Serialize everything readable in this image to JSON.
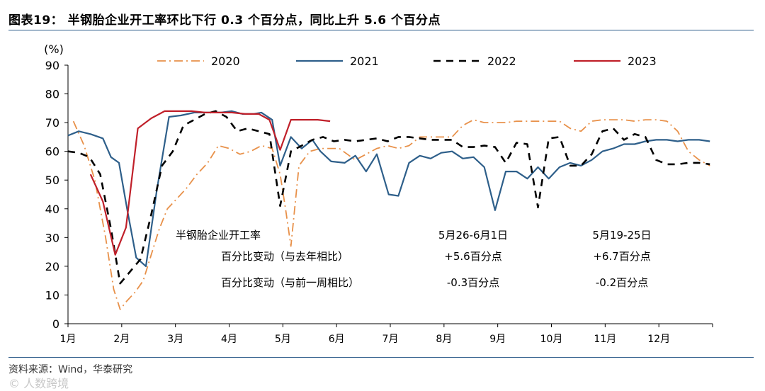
{
  "header": {
    "title": "图表19： 半钢胎企业开工率环比下行 0.3 个百分点，同比上升 5.6 个百分点"
  },
  "footer": {
    "source": "资料来源：Wind，华泰研究",
    "watermark": "© 人数跨境"
  },
  "chart_data": {
    "type": "line",
    "ylabel": "(%)",
    "ylim": [
      0,
      90
    ],
    "yticks": [
      0,
      10,
      20,
      30,
      40,
      50,
      60,
      70,
      80,
      90
    ],
    "xlim": [
      0,
      12
    ],
    "xticks": [
      {
        "x": 0,
        "label": "1月"
      },
      {
        "x": 1,
        "label": "2月"
      },
      {
        "x": 2,
        "label": "3月"
      },
      {
        "x": 3,
        "label": "4月"
      },
      {
        "x": 4,
        "label": "5月"
      },
      {
        "x": 5,
        "label": "6月"
      },
      {
        "x": 6,
        "label": "7月"
      },
      {
        "x": 7,
        "label": "8月"
      },
      {
        "x": 8,
        "label": "9月"
      },
      {
        "x": 9,
        "label": "10月"
      },
      {
        "x": 10,
        "label": "11月"
      },
      {
        "x": 11,
        "label": "12月"
      }
    ],
    "grid": false,
    "legend": "top",
    "series": [
      {
        "name": "2020",
        "color": "#e8914a",
        "style": "dashdot",
        "points": [
          [
            0.1,
            70.5
          ],
          [
            0.3,
            62
          ],
          [
            0.5,
            50
          ],
          [
            0.7,
            30
          ],
          [
            0.85,
            12
          ],
          [
            0.97,
            5
          ],
          [
            1.1,
            8
          ],
          [
            1.25,
            11
          ],
          [
            1.4,
            15
          ],
          [
            1.55,
            24
          ],
          [
            1.7,
            33
          ],
          [
            1.85,
            40
          ],
          [
            2.0,
            43
          ],
          [
            2.2,
            47
          ],
          [
            2.4,
            52
          ],
          [
            2.6,
            56
          ],
          [
            2.8,
            62
          ],
          [
            3.0,
            61
          ],
          [
            3.2,
            59
          ],
          [
            3.4,
            60
          ],
          [
            3.6,
            62
          ],
          [
            3.8,
            61
          ],
          [
            3.95,
            52
          ],
          [
            4.05,
            40
          ],
          [
            4.15,
            27
          ],
          [
            4.3,
            55
          ],
          [
            4.5,
            60
          ],
          [
            4.7,
            61
          ],
          [
            4.9,
            61
          ],
          [
            5.05,
            61
          ],
          [
            5.2,
            59
          ],
          [
            5.35,
            57
          ],
          [
            5.55,
            59
          ],
          [
            5.75,
            61
          ],
          [
            5.95,
            62
          ],
          [
            6.15,
            61
          ],
          [
            6.35,
            62
          ],
          [
            6.55,
            65
          ],
          [
            6.75,
            65
          ],
          [
            6.95,
            65
          ],
          [
            7.15,
            65
          ],
          [
            7.35,
            69
          ],
          [
            7.55,
            71
          ],
          [
            7.75,
            70
          ],
          [
            7.95,
            70
          ],
          [
            8.15,
            70
          ],
          [
            8.35,
            70.5
          ],
          [
            8.55,
            70.5
          ],
          [
            8.75,
            70.5
          ],
          [
            8.95,
            70.5
          ],
          [
            9.15,
            70.5
          ],
          [
            9.35,
            68
          ],
          [
            9.55,
            67
          ],
          [
            9.75,
            70.5
          ],
          [
            9.95,
            71
          ],
          [
            10.15,
            71
          ],
          [
            10.35,
            71
          ],
          [
            10.55,
            70.5
          ],
          [
            10.75,
            71
          ],
          [
            10.95,
            71
          ],
          [
            11.15,
            70.5
          ],
          [
            11.35,
            67
          ],
          [
            11.55,
            60
          ],
          [
            11.75,
            57
          ],
          [
            11.95,
            55
          ]
        ]
      },
      {
        "name": "2021",
        "color": "#2e5f8a",
        "style": "solid",
        "points": [
          [
            0.0,
            65.5
          ],
          [
            0.2,
            67
          ],
          [
            0.42,
            66
          ],
          [
            0.65,
            64.5
          ],
          [
            0.8,
            58
          ],
          [
            0.95,
            56
          ],
          [
            1.1,
            40
          ],
          [
            1.27,
            23
          ],
          [
            1.45,
            20
          ],
          [
            1.65,
            46
          ],
          [
            1.88,
            72
          ],
          [
            2.1,
            72.5
          ],
          [
            2.35,
            73.5
          ],
          [
            2.6,
            73.5
          ],
          [
            2.85,
            73.5
          ],
          [
            3.05,
            74
          ],
          [
            3.25,
            73
          ],
          [
            3.45,
            73
          ],
          [
            3.6,
            73.5
          ],
          [
            3.8,
            71
          ],
          [
            3.95,
            55
          ],
          [
            4.15,
            65
          ],
          [
            4.35,
            61
          ],
          [
            4.55,
            64
          ],
          [
            4.7,
            60
          ],
          [
            4.9,
            56.5
          ],
          [
            5.15,
            56
          ],
          [
            5.35,
            58.5
          ],
          [
            5.55,
            53
          ],
          [
            5.75,
            59
          ],
          [
            5.97,
            45
          ],
          [
            6.15,
            44.5
          ],
          [
            6.35,
            56
          ],
          [
            6.55,
            58.5
          ],
          [
            6.75,
            57.5
          ],
          [
            6.95,
            59.5
          ],
          [
            7.15,
            60
          ],
          [
            7.35,
            57.5
          ],
          [
            7.55,
            58
          ],
          [
            7.75,
            54.5
          ],
          [
            7.95,
            39.5
          ],
          [
            8.15,
            53
          ],
          [
            8.35,
            53
          ],
          [
            8.55,
            50.5
          ],
          [
            8.75,
            54.5
          ],
          [
            8.95,
            50.5
          ],
          [
            9.15,
            54.5
          ],
          [
            9.35,
            56
          ],
          [
            9.55,
            55
          ],
          [
            9.75,
            57
          ],
          [
            9.95,
            60
          ],
          [
            10.15,
            61
          ],
          [
            10.35,
            62.5
          ],
          [
            10.55,
            62.5
          ],
          [
            10.75,
            63.5
          ],
          [
            10.95,
            64
          ],
          [
            11.15,
            64
          ],
          [
            11.35,
            63.5
          ],
          [
            11.55,
            64
          ],
          [
            11.75,
            64
          ],
          [
            11.95,
            63.5
          ]
        ]
      },
      {
        "name": "2022",
        "color": "#000000",
        "style": "dashed",
        "points": [
          [
            0.0,
            60
          ],
          [
            0.2,
            59.5
          ],
          [
            0.4,
            58
          ],
          [
            0.6,
            52
          ],
          [
            0.8,
            33
          ],
          [
            0.97,
            14
          ],
          [
            1.15,
            18
          ],
          [
            1.35,
            22.5
          ],
          [
            1.55,
            38
          ],
          [
            1.75,
            55
          ],
          [
            1.95,
            60
          ],
          [
            2.15,
            69
          ],
          [
            2.35,
            71
          ],
          [
            2.55,
            73
          ],
          [
            2.75,
            74
          ],
          [
            2.95,
            72
          ],
          [
            3.15,
            67
          ],
          [
            3.35,
            68
          ],
          [
            3.55,
            67
          ],
          [
            3.75,
            66
          ],
          [
            3.95,
            41
          ],
          [
            4.15,
            60
          ],
          [
            4.35,
            62
          ],
          [
            4.55,
            64
          ],
          [
            4.75,
            65
          ],
          [
            4.95,
            63.5
          ],
          [
            5.15,
            64
          ],
          [
            5.35,
            63.5
          ],
          [
            5.55,
            64
          ],
          [
            5.75,
            64.5
          ],
          [
            5.95,
            63.5
          ],
          [
            6.15,
            65
          ],
          [
            6.35,
            65
          ],
          [
            6.55,
            64.5
          ],
          [
            6.75,
            64
          ],
          [
            6.95,
            64
          ],
          [
            7.15,
            64
          ],
          [
            7.35,
            61.5
          ],
          [
            7.55,
            61.5
          ],
          [
            7.75,
            62
          ],
          [
            7.95,
            61.5
          ],
          [
            8.15,
            56
          ],
          [
            8.35,
            63
          ],
          [
            8.55,
            62.5
          ],
          [
            8.75,
            40.5
          ],
          [
            8.95,
            64.5
          ],
          [
            9.15,
            65
          ],
          [
            9.35,
            55
          ],
          [
            9.55,
            55
          ],
          [
            9.75,
            59
          ],
          [
            9.95,
            67
          ],
          [
            10.15,
            68
          ],
          [
            10.35,
            64
          ],
          [
            10.55,
            66
          ],
          [
            10.75,
            65
          ],
          [
            10.95,
            57
          ],
          [
            11.15,
            55.5
          ],
          [
            11.35,
            55.5
          ],
          [
            11.55,
            56
          ],
          [
            11.75,
            56
          ],
          [
            11.95,
            55.5
          ]
        ]
      },
      {
        "name": "2023",
        "color": "#c0202a",
        "style": "solid",
        "points": [
          [
            0.42,
            52
          ],
          [
            0.65,
            42.5
          ],
          [
            0.88,
            24
          ],
          [
            1.08,
            33.5
          ],
          [
            1.3,
            68
          ],
          [
            1.55,
            71.5
          ],
          [
            1.8,
            74
          ],
          [
            2.05,
            74
          ],
          [
            2.3,
            74
          ],
          [
            2.55,
            73.5
          ],
          [
            2.8,
            73.5
          ],
          [
            3.05,
            73.5
          ],
          [
            3.3,
            73
          ],
          [
            3.55,
            73
          ],
          [
            3.75,
            71
          ],
          [
            3.95,
            60.5
          ],
          [
            4.15,
            71
          ],
          [
            4.4,
            71
          ],
          [
            4.65,
            71
          ],
          [
            4.88,
            70.5
          ]
        ]
      }
    ],
    "annotations": {
      "row_titles": [
        "半钢胎企业开工率",
        "百分比变动（与去年相比）",
        "百分比变动（与前一周相比）"
      ],
      "columns": [
        {
          "header": "5月26-6月1日",
          "values": [
            "+5.6百分点",
            "-0.3百分点"
          ]
        },
        {
          "header": "5月19-25日",
          "values": [
            "+6.7百分点",
            "-0.2百分点"
          ]
        }
      ]
    }
  }
}
